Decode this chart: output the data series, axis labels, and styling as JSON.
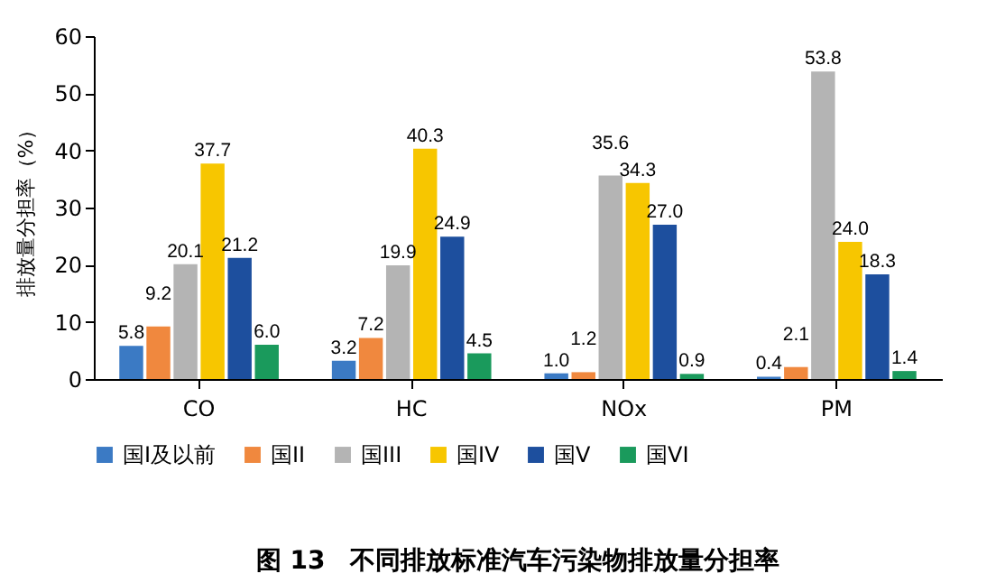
{
  "chart_data": {
    "type": "bar",
    "title": "图 13　不同排放标准汽车污染物排放量分担率",
    "ylabel": "排放量分担率（%）",
    "categories": [
      "CO",
      "HC",
      "NOx",
      "PM"
    ],
    "series": [
      {
        "name": "国I及以前",
        "color": "#3b7ac4",
        "values": [
          5.8,
          3.2,
          1.0,
          0.4
        ],
        "value_labels": [
          "5.8",
          "3.2",
          "1.0",
          "0.4"
        ]
      },
      {
        "name": "国II",
        "color": "#f0883e",
        "values": [
          9.2,
          7.2,
          1.2,
          2.1
        ],
        "value_labels": [
          "9.2",
          "7.2",
          "1.2",
          "2.1"
        ]
      },
      {
        "name": "国III",
        "color": "#b4b4b4",
        "values": [
          20.1,
          19.9,
          35.6,
          53.8
        ],
        "value_labels": [
          "20.1",
          "19.9",
          "35.6",
          "53.8"
        ]
      },
      {
        "name": "国IV",
        "color": "#f7c600",
        "values": [
          37.7,
          40.3,
          34.3,
          24.0
        ],
        "value_labels": [
          "37.7",
          "40.3",
          "34.3",
          "24.0"
        ]
      },
      {
        "name": "国V",
        "color": "#1d4f9e",
        "values": [
          21.2,
          24.9,
          27.0,
          18.3
        ],
        "value_labels": [
          "21.2",
          "24.9",
          "27.0",
          "18.3"
        ]
      },
      {
        "name": "国VI",
        "color": "#1a9a5c",
        "values": [
          6.0,
          4.5,
          0.9,
          1.4
        ],
        "value_labels": [
          "6.0",
          "4.5",
          "0.9",
          "1.4"
        ]
      }
    ],
    "ylim": [
      0,
      60
    ],
    "yticks": [
      0,
      10,
      20,
      30,
      40,
      50,
      60
    ],
    "grid": false,
    "legend": "bottom"
  }
}
